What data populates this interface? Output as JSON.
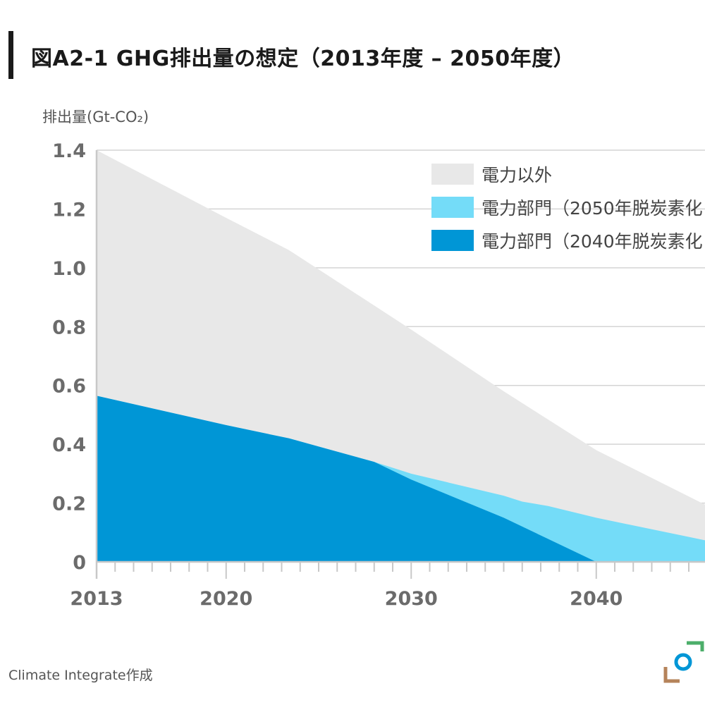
{
  "title": "図A2-1 GHG排出量の想定（2013年度 – 2050年度）",
  "source": "Climate Integrate作成",
  "chart_data": {
    "type": "area",
    "title": "図A2-1 GHG排出量の想定（2013年度 – 2050年度）",
    "ylabel": "排出量(Gt-CO₂)",
    "xlabel": "",
    "xlim": [
      2013,
      2047.3
    ],
    "ylim": [
      0,
      1.4
    ],
    "yticks": [
      0,
      0.2,
      0.4,
      0.6,
      0.8,
      1.0,
      1.2,
      1.4
    ],
    "ytick_labels": [
      "0",
      "0.2",
      "0.4",
      "0.6",
      "0.8",
      "1.0",
      "1.2",
      "1.4"
    ],
    "xticks": [
      2013,
      2020,
      2030,
      2040
    ],
    "xtick_labels": [
      "2013",
      "2020",
      "2030",
      "2040"
    ],
    "grid": true,
    "legend_position": "top-right",
    "series": [
      {
        "name": "電力以外",
        "color": "#e8e8e8",
        "x": [
          2013,
          2020,
          2023.4,
          2030,
          2035,
          2040,
          2047.3
        ],
        "y": [
          1.4,
          1.17,
          1.06,
          0.79,
          0.58,
          0.38,
          0.15
        ]
      },
      {
        "name": "電力部門（2050年脱炭素化",
        "color": "#74dcf8",
        "x": [
          2013,
          2020,
          2023.4,
          2028,
          2030,
          2035,
          2036,
          2037.4,
          2040,
          2047.3
        ],
        "y": [
          0.565,
          0.465,
          0.42,
          0.34,
          0.3,
          0.225,
          0.205,
          0.19,
          0.15,
          0.055
        ]
      },
      {
        "name": "電力部門（2040年脱炭素化",
        "color": "#0096d6",
        "x": [
          2013,
          2020,
          2023.4,
          2028,
          2030,
          2035,
          2040
        ],
        "y": [
          0.565,
          0.465,
          0.42,
          0.34,
          0.28,
          0.15,
          0.0
        ]
      }
    ]
  }
}
